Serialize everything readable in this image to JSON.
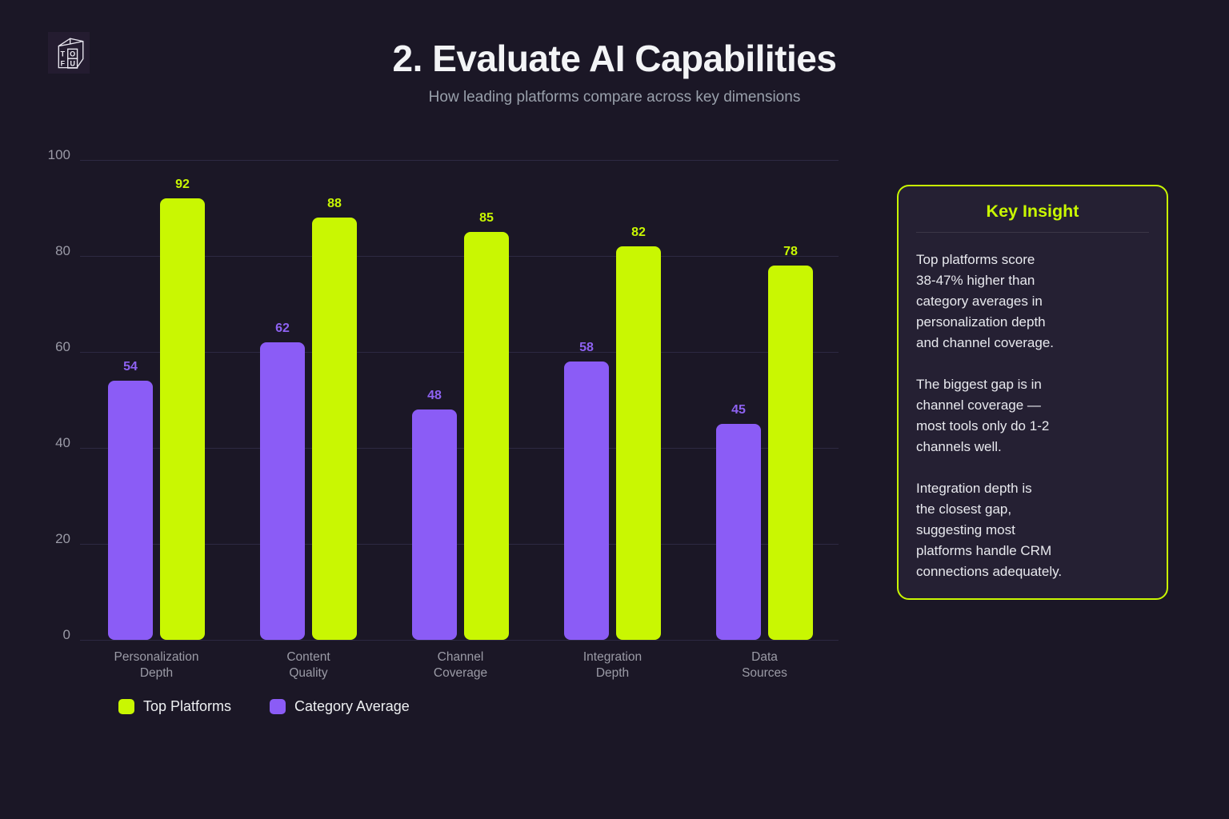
{
  "header": {
    "title": "2. Evaluate AI Capabilities",
    "subtitle": "How leading platforms compare across key dimensions",
    "logo_letters": [
      "T",
      "O",
      "F",
      "U"
    ]
  },
  "chart_data": {
    "type": "bar",
    "categories": [
      "Personalization\nDepth",
      "Content\nQuality",
      "Channel\nCoverage",
      "Integration\nDepth",
      "Data\nSources"
    ],
    "series": [
      {
        "name": "Category Average",
        "color": "#8b5cf6",
        "label_color": "#8e62f2",
        "values": [
          54,
          62,
          48,
          58,
          45
        ]
      },
      {
        "name": "Top Platforms",
        "color": "#c9f702",
        "label_color": "#c9f702",
        "values": [
          92,
          88,
          85,
          82,
          78
        ]
      }
    ],
    "legend": [
      {
        "label": "Top Platforms",
        "color": "#c9f702"
      },
      {
        "label": "Category Average",
        "color": "#8b5cf6"
      }
    ],
    "ylim": [
      0,
      100
    ],
    "yticks": [
      0,
      20,
      40,
      60,
      80,
      100
    ],
    "grid": true,
    "legend_position": "bottom",
    "value_labels": true
  },
  "insight": {
    "title": "Key Insight",
    "paragraphs": [
      "Top platforms score\n38-47% higher than\ncategory averages in\npersonalization depth\nand channel coverage.",
      "The biggest gap is in\nchannel coverage —\nmost tools only do 1-2\nchannels well.",
      "Integration depth is\nthe closest gap,\nsuggesting most\nplatforms handle CRM\nconnections adequately."
    ]
  },
  "colors": {
    "background": "#1b1726",
    "card_background": "#252033",
    "accent_green": "#c9f702",
    "accent_purple": "#8b5cf6",
    "grid_line": "#2d2942",
    "text_primary": "#f3f4f6",
    "text_muted": "#9b9ba6"
  }
}
